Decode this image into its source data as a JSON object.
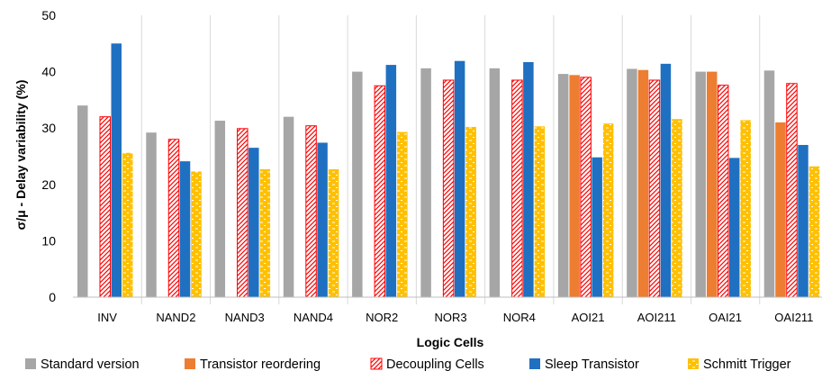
{
  "chart_data": {
    "type": "bar",
    "title": "",
    "xlabel": "Logic Cells",
    "ylabel": "σ/μ  - Delay variability (%)",
    "ylim": [
      0,
      50
    ],
    "yticks": [
      0,
      10,
      20,
      30,
      40,
      50
    ],
    "grid": "vertical category separators",
    "legend_position": "bottom",
    "categories": [
      "INV",
      "NAND2",
      "NAND3",
      "NAND4",
      "NOR2",
      "NOR3",
      "NOR4",
      "AOI21",
      "AOI211",
      "OAI21",
      "OAI211"
    ],
    "series": [
      {
        "name": "Standard version",
        "color": "#a6a6a6",
        "pattern": "solid",
        "values": [
          34.0,
          29.2,
          31.3,
          32.0,
          40.0,
          40.6,
          40.6,
          39.6,
          40.5,
          40.0,
          40.2
        ]
      },
      {
        "name": "Transistor reordering",
        "color": "#ed7d31",
        "pattern": "solid",
        "values": [
          null,
          null,
          null,
          null,
          null,
          null,
          null,
          39.4,
          40.3,
          40.0,
          31.0
        ]
      },
      {
        "name": "Decoupling Cells",
        "color": "#ff0000",
        "pattern": "hatch",
        "values": [
          32.0,
          28.0,
          29.9,
          30.4,
          37.5,
          38.5,
          38.5,
          39.0,
          38.5,
          37.6,
          37.9
        ]
      },
      {
        "name": "Sleep Transistor",
        "color": "#1f70c1",
        "pattern": "solid",
        "values": [
          45.0,
          24.1,
          26.5,
          27.4,
          41.2,
          41.9,
          41.7,
          24.8,
          41.4,
          24.7,
          27.0
        ]
      },
      {
        "name": "Schmitt Trigger",
        "color": "#ffc000",
        "pattern": "dashes",
        "values": [
          25.6,
          22.3,
          22.7,
          22.7,
          29.3,
          30.2,
          30.3,
          30.8,
          31.6,
          31.4,
          23.2
        ]
      }
    ]
  }
}
